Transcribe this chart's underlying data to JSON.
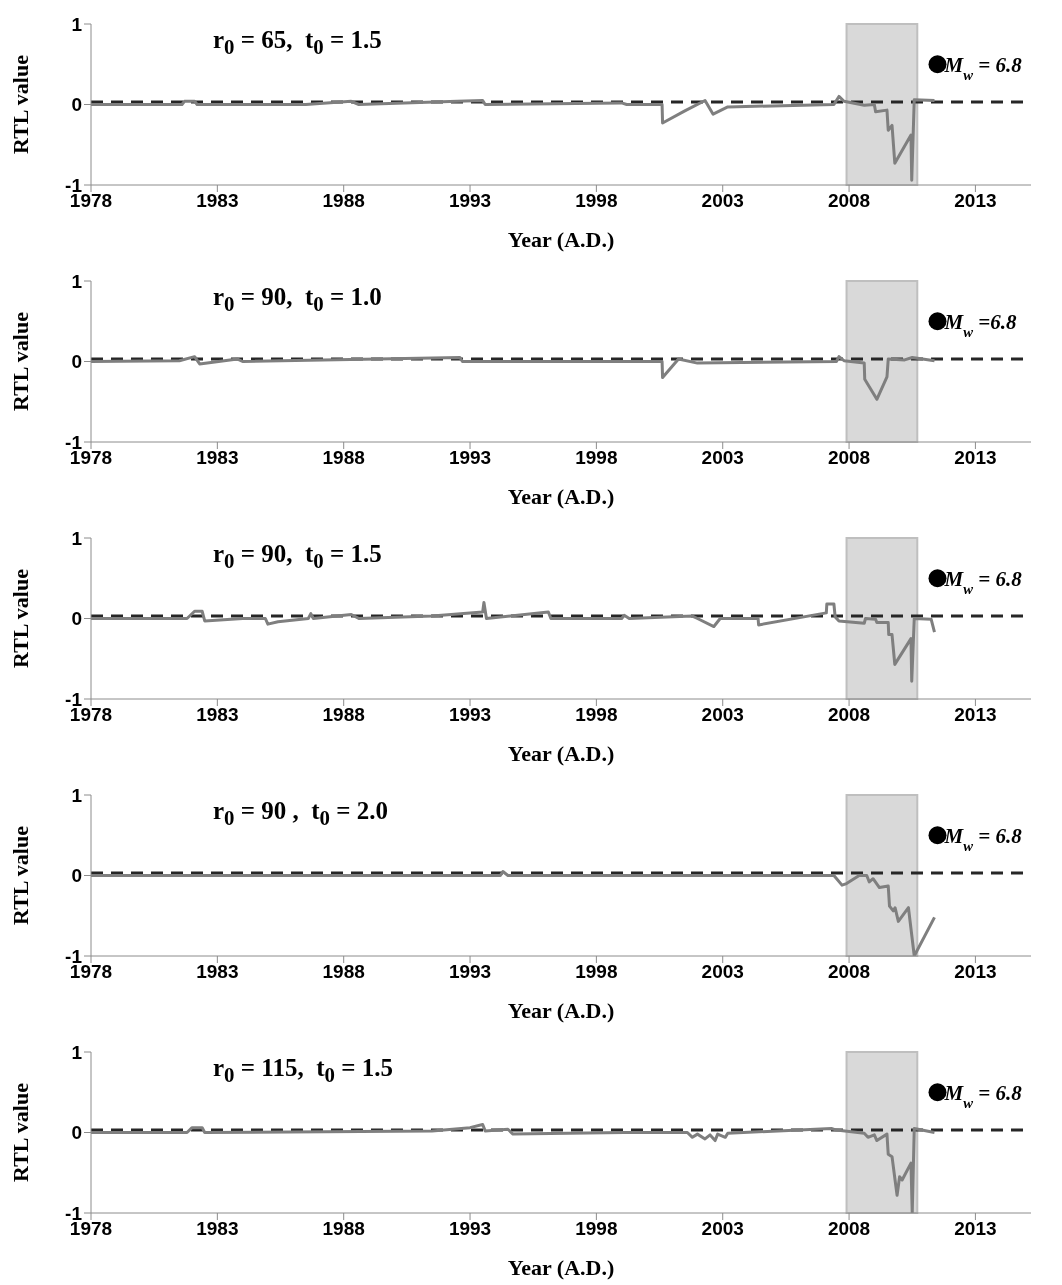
{
  "chart_data": [
    {
      "type": "line",
      "title": "r$_{0}$ = 65,  t$_{0}$ = 1.5",
      "xlabel": "Year (A.D.)",
      "ylabel": "RTL value",
      "xlim": [
        1978,
        2015.2
      ],
      "xticks": [
        1978,
        1983,
        1988,
        1993,
        1998,
        2003,
        2008,
        2013
      ],
      "ylim": [
        -1,
        1
      ],
      "yticks": [
        -1,
        0,
        1
      ],
      "series": [
        {
          "type": "line",
          "color": "#7f7f7f",
          "marker": "none",
          "x": [
            1978,
            1981.6,
            1981.7,
            1982.1,
            1982.2,
            1986.5,
            1988.3,
            1988.6,
            1992.5,
            1993.5,
            1993.6,
            1999.0,
            1999.2,
            2000.6,
            2000.62,
            2001.5,
            2002.3,
            2002.62,
            2003.2,
            2007.4,
            2007.6,
            2007.8,
            2008.6,
            2009.0,
            2009.05,
            2009.5,
            2009.55,
            2009.7,
            2009.81,
            2010.45,
            2010.48,
            2010.58,
            2011.38
          ],
          "values": [
            0.0,
            0.0,
            0.04,
            0.04,
            0.0,
            0.0,
            0.04,
            0.0,
            0.04,
            0.05,
            0.0,
            0.02,
            0.0,
            0.0,
            -0.23,
            -0.08,
            0.05,
            -0.12,
            -0.03,
            0.0,
            0.1,
            0.04,
            -0.01,
            0.0,
            -0.09,
            -0.07,
            -0.32,
            -0.26,
            -0.73,
            -0.38,
            -0.94,
            0.06,
            0.05
          ]
        },
        {
          "type": "scatter",
          "name": "M$_{w}$ = 6.8",
          "color": "#000000",
          "marker": "circle",
          "x": [
            2011.5
          ],
          "values": [
            0.5
          ]
        }
      ],
      "ref_lines": [
        {
          "axis": "y",
          "value": 0.03,
          "color": "#262626",
          "line_style": "dashed"
        }
      ],
      "bands": [
        {
          "axis": "x",
          "from": 2007.9,
          "to": 2010.7,
          "color": "#d9d9d9"
        }
      ]
    },
    {
      "type": "line",
      "title": "r$_{0}$ = 90,  t$_{0}$ = 1.0",
      "xlabel": "Year (A.D.)",
      "ylabel": "RTL value",
      "xlim": [
        1978,
        2015.2
      ],
      "xticks": [
        1978,
        1983,
        1988,
        1993,
        1998,
        2003,
        2008,
        2013
      ],
      "ylim": [
        -1,
        1
      ],
      "yticks": [
        -1,
        0,
        1
      ],
      "series": [
        {
          "type": "line",
          "color": "#7f7f7f",
          "marker": "none",
          "x": [
            1978,
            1981.5,
            1982.1,
            1982.3,
            1983.8,
            1984.0,
            1992.6,
            1992.7,
            2000.6,
            2000.62,
            2001.25,
            2002.0,
            2007.5,
            2007.6,
            2007.8,
            2008.6,
            2008.62,
            2009.1,
            2009.5,
            2009.55,
            2010.2,
            2010.5,
            2011.38
          ],
          "values": [
            0.0,
            0.01,
            0.06,
            -0.03,
            0.03,
            0.0,
            0.05,
            0.0,
            0.0,
            -0.2,
            0.03,
            -0.02,
            0.0,
            0.06,
            0.01,
            -0.02,
            -0.22,
            -0.47,
            -0.19,
            0.03,
            0.02,
            0.05,
            0.01
          ]
        },
        {
          "type": "scatter",
          "name": "M$_{w}$ =6.8",
          "color": "#000000",
          "marker": "circle",
          "x": [
            2011.5
          ],
          "values": [
            0.5
          ]
        }
      ],
      "ref_lines": [
        {
          "axis": "y",
          "value": 0.03,
          "color": "#262626",
          "line_style": "dashed"
        }
      ],
      "bands": [
        {
          "axis": "x",
          "from": 2007.9,
          "to": 2010.7,
          "color": "#d9d9d9"
        }
      ]
    },
    {
      "type": "line",
      "title": "r$_{0}$ = 90,  t$_{0}$ = 1.5",
      "xlabel": "Year (A.D.)",
      "ylabel": "RTL value",
      "xlim": [
        1978,
        2015.2
      ],
      "xticks": [
        1978,
        1983,
        1988,
        1993,
        1998,
        2003,
        2008,
        2013
      ],
      "ylim": [
        -1,
        1
      ],
      "yticks": [
        -1,
        0,
        1
      ],
      "series": [
        {
          "type": "line",
          "color": "#7f7f7f",
          "marker": "none",
          "x": [
            1978,
            1981.8,
            1982.1,
            1982.4,
            1982.5,
            1984.0,
            1984.9,
            1985.0,
            1985.4,
            1986.6,
            1986.7,
            1986.8,
            1988.3,
            1988.6,
            1991.5,
            1993.5,
            1993.55,
            1993.65,
            1996.1,
            1996.2,
            1999.0,
            1999.1,
            1999.3,
            2001.8,
            2002.0,
            2002.65,
            2002.9,
            2004.4,
            2004.42,
            2007.1,
            2007.12,
            2007.4,
            2007.45,
            2007.6,
            2008.6,
            2008.65,
            2009.05,
            2009.1,
            2009.55,
            2009.57,
            2009.7,
            2009.81,
            2010.45,
            2010.48,
            2010.58,
            2011.25,
            2011.38
          ],
          "values": [
            0.0,
            0.0,
            0.09,
            0.09,
            -0.03,
            0.0,
            0.0,
            -0.07,
            -0.04,
            0.0,
            0.06,
            0.0,
            0.05,
            0.0,
            0.03,
            0.08,
            0.2,
            0.0,
            0.08,
            0.0,
            0.0,
            0.04,
            0.0,
            0.03,
            0.0,
            -0.1,
            0.0,
            0.0,
            -0.08,
            0.07,
            0.18,
            0.18,
            0.02,
            -0.03,
            -0.06,
            0.0,
            -0.01,
            -0.05,
            -0.05,
            -0.2,
            -0.2,
            -0.57,
            -0.25,
            -0.78,
            0.0,
            -0.01,
            -0.17
          ]
        },
        {
          "type": "scatter",
          "name": "M$_{w}$ = 6.8",
          "color": "#000000",
          "marker": "circle",
          "x": [
            2011.5
          ],
          "values": [
            0.5
          ]
        }
      ],
      "ref_lines": [
        {
          "axis": "y",
          "value": 0.03,
          "color": "#262626",
          "line_style": "dashed"
        }
      ],
      "bands": [
        {
          "axis": "x",
          "from": 2007.9,
          "to": 2010.7,
          "color": "#d9d9d9"
        }
      ]
    },
    {
      "type": "line",
      "title": "r$_{0}$ = 90 ,  t$_{0}$ = 2.0",
      "xlabel": "Year (A.D.)",
      "ylabel": "RTL value",
      "xlim": [
        1978,
        2015.2
      ],
      "xticks": [
        1978,
        1983,
        1988,
        1993,
        1998,
        2003,
        2008,
        2013
      ],
      "ylim": [
        -1,
        1
      ],
      "yticks": [
        -1,
        0,
        1
      ],
      "series": [
        {
          "type": "line",
          "color": "#7f7f7f",
          "marker": "none",
          "x": [
            1978,
            1994.2,
            1994.3,
            1994.5,
            2007.4,
            2007.72,
            2007.9,
            2008.4,
            2008.7,
            2008.8,
            2008.95,
            2009.2,
            2009.55,
            2009.6,
            2009.75,
            2009.82,
            2009.95,
            2010.35,
            2010.58,
            2011.38
          ],
          "values": [
            0.0,
            0.0,
            0.05,
            0.0,
            0.0,
            -0.12,
            -0.1,
            0.0,
            0.0,
            -0.08,
            -0.04,
            -0.15,
            -0.13,
            -0.38,
            -0.44,
            -0.4,
            -0.57,
            -0.4,
            -1.0,
            -0.52
          ]
        },
        {
          "type": "scatter",
          "name": "M$_{w}$ = 6.8",
          "color": "#000000",
          "marker": "circle",
          "x": [
            2011.5
          ],
          "values": [
            0.5
          ]
        }
      ],
      "ref_lines": [
        {
          "axis": "y",
          "value": 0.03,
          "color": "#262626",
          "line_style": "dashed"
        }
      ],
      "bands": [
        {
          "axis": "x",
          "from": 2007.9,
          "to": 2010.7,
          "color": "#d9d9d9"
        }
      ]
    },
    {
      "type": "line",
      "title": "r$_{0}$ = 115,  t$_{0}$ = 1.5",
      "xlabel": "Year (A.D.)",
      "ylabel": "RTL value",
      "xlim": [
        1978,
        2015.2
      ],
      "xticks": [
        1978,
        1983,
        1988,
        1993,
        1998,
        2003,
        2008,
        2013
      ],
      "ylim": [
        -1,
        1
      ],
      "yticks": [
        -1,
        0,
        1
      ],
      "series": [
        {
          "type": "line",
          "color": "#7f7f7f",
          "marker": "none",
          "x": [
            1978,
            1981.8,
            1982.0,
            1982.4,
            1982.5,
            1991.5,
            1993.0,
            1993.5,
            1993.6,
            1994.5,
            1994.7,
            1999.1,
            2001.6,
            2001.8,
            2002.0,
            2002.3,
            2002.5,
            2002.7,
            2002.8,
            2003.1,
            2003.2,
            2007.3,
            2007.5,
            2008.6,
            2008.75,
            2009.0,
            2009.1,
            2009.5,
            2009.55,
            2009.7,
            2009.82,
            2009.9,
            2010.0,
            2010.1,
            2010.45,
            2010.5,
            2010.58,
            2011.38
          ],
          "values": [
            0.0,
            0.0,
            0.06,
            0.06,
            0.0,
            0.02,
            0.06,
            0.1,
            0.02,
            0.04,
            -0.02,
            0.0,
            0.0,
            -0.06,
            -0.02,
            -0.08,
            -0.03,
            -0.1,
            -0.02,
            -0.06,
            -0.01,
            0.05,
            0.03,
            -0.01,
            -0.06,
            -0.03,
            -0.1,
            -0.02,
            -0.27,
            -0.3,
            -0.59,
            -0.78,
            -0.55,
            -0.59,
            -0.38,
            -1.0,
            0.05,
            0.0
          ]
        },
        {
          "type": "scatter",
          "name": "M$_{w}$ = 6.8",
          "color": "#000000",
          "marker": "circle",
          "x": [
            2011.5
          ],
          "values": [
            0.5
          ]
        }
      ],
      "ref_lines": [
        {
          "axis": "y",
          "value": 0.03,
          "color": "#262626",
          "line_style": "dashed"
        }
      ],
      "bands": [
        {
          "axis": "x",
          "from": 2007.9,
          "to": 2010.7,
          "color": "#d9d9d9"
        }
      ]
    }
  ]
}
